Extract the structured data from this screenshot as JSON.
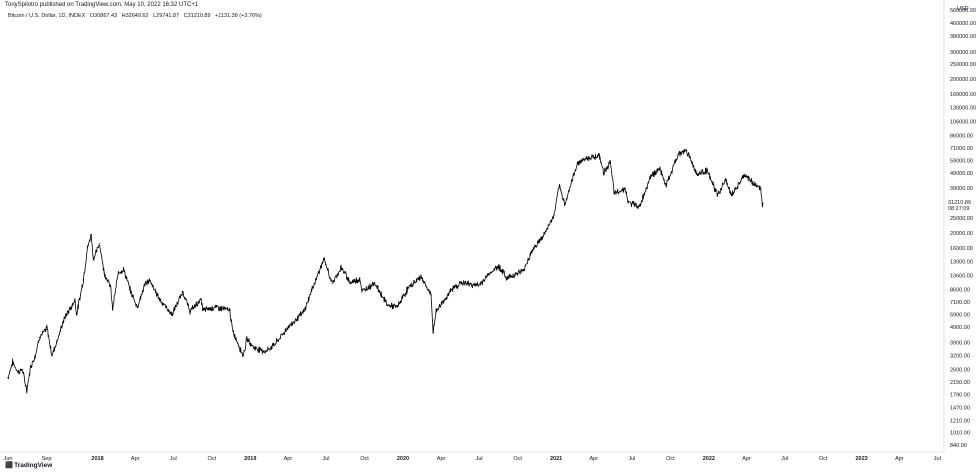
{
  "header": {
    "published_by": "TonySpilotro published on TradingView.com, May 10, 2022 16:32 UTC+1"
  },
  "symbol": {
    "name": "Bitcoin / U.S. Dollar, 1D, INDEX",
    "open": "O30867.43",
    "high": "H32649.62",
    "low": "L29741.87",
    "close": "C31210.89",
    "change": "+1131.38 (+3.76%)"
  },
  "currency": "USD",
  "last_price": {
    "value": "31210.89",
    "countdown": "08:27:09"
  },
  "logo": {
    "icon_name": "tradingview-logo-icon",
    "text": "TradingView"
  },
  "chart_data": {
    "type": "line",
    "title": "Bitcoin / U.S. Dollar, 1D, INDEX",
    "y_scale": "log",
    "ylim": [
      840,
      560000
    ],
    "y_ticks": [
      {
        "label": "560000.00",
        "value": 560000
      },
      {
        "label": "460000.00",
        "value": 460000
      },
      {
        "label": "380000.00",
        "value": 380000
      },
      {
        "label": "300000.00",
        "value": 300000
      },
      {
        "label": "250000.00",
        "value": 250000
      },
      {
        "label": "200000.00",
        "value": 200000
      },
      {
        "label": "160000.00",
        "value": 160000
      },
      {
        "label": "130000.00",
        "value": 130000
      },
      {
        "label": "106000.00",
        "value": 106000
      },
      {
        "label": "86000.00",
        "value": 86000
      },
      {
        "label": "71000.00",
        "value": 71000
      },
      {
        "label": "59000.00",
        "value": 59000
      },
      {
        "label": "49000.00",
        "value": 49000
      },
      {
        "label": "39000.00",
        "value": 39000
      },
      {
        "label": "25000.00",
        "value": 25000
      },
      {
        "label": "20000.00",
        "value": 20000
      },
      {
        "label": "16000.00",
        "value": 16000
      },
      {
        "label": "13000.00",
        "value": 13000
      },
      {
        "label": "10600.00",
        "value": 10600
      },
      {
        "label": "8600.00",
        "value": 8600
      },
      {
        "label": "7100.00",
        "value": 7100
      },
      {
        "label": "5900.00",
        "value": 5900
      },
      {
        "label": "4900.00",
        "value": 4900
      },
      {
        "label": "3900.00",
        "value": 3900
      },
      {
        "label": "3200.00",
        "value": 3200
      },
      {
        "label": "2600.00",
        "value": 2600
      },
      {
        "label": "2150.00",
        "value": 2150
      },
      {
        "label": "1790.00",
        "value": 1790
      },
      {
        "label": "1470.00",
        "value": 1470
      },
      {
        "label": "1210.00",
        "value": 1210
      },
      {
        "label": "1010.00",
        "value": 1010
      },
      {
        "label": "840.00",
        "value": 840
      }
    ],
    "xlim": [
      "2017-06-01",
      "2023-07-05"
    ],
    "x_ticks": [
      {
        "label": "Jun",
        "date": "2017-06-01",
        "year": false
      },
      {
        "label": "Sep",
        "date": "2017-09-01",
        "year": false
      },
      {
        "label": "2018",
        "date": "2018-01-01",
        "year": true
      },
      {
        "label": "Apr",
        "date": "2018-04-01",
        "year": false
      },
      {
        "label": "Jul",
        "date": "2018-07-01",
        "year": false
      },
      {
        "label": "Oct",
        "date": "2018-10-01",
        "year": false
      },
      {
        "label": "2019",
        "date": "2019-01-01",
        "year": true
      },
      {
        "label": "Apr",
        "date": "2019-04-01",
        "year": false
      },
      {
        "label": "Jul",
        "date": "2019-07-01",
        "year": false
      },
      {
        "label": "Oct",
        "date": "2019-10-01",
        "year": false
      },
      {
        "label": "2020",
        "date": "2020-01-01",
        "year": true
      },
      {
        "label": "Apr",
        "date": "2020-04-01",
        "year": false
      },
      {
        "label": "Jul",
        "date": "2020-07-01",
        "year": false
      },
      {
        "label": "Oct",
        "date": "2020-10-01",
        "year": false
      },
      {
        "label": "2021",
        "date": "2021-01-01",
        "year": true
      },
      {
        "label": "Apr",
        "date": "2021-04-01",
        "year": false
      },
      {
        "label": "Jul",
        "date": "2021-07-01",
        "year": false
      },
      {
        "label": "Oct",
        "date": "2021-10-01",
        "year": false
      },
      {
        "label": "2022",
        "date": "2022-01-01",
        "year": true
      },
      {
        "label": "Apr",
        "date": "2022-04-01",
        "year": false
      },
      {
        "label": "Jul",
        "date": "2022-07-01",
        "year": false
      },
      {
        "label": "Oct",
        "date": "2022-10-01",
        "year": false
      },
      {
        "label": "2023",
        "date": "2023-01-01",
        "year": true
      },
      {
        "label": "Apr",
        "date": "2023-04-01",
        "year": false
      },
      {
        "label": "Jul",
        "date": "2023-07-01",
        "year": false
      }
    ],
    "grid": false,
    "series": [
      {
        "color": "#000000",
        "points": [
          [
            "2017-06-01",
            2300
          ],
          [
            "2017-06-12",
            2900
          ],
          [
            "2017-06-25",
            2500
          ],
          [
            "2017-07-05",
            2600
          ],
          [
            "2017-07-16",
            1900
          ],
          [
            "2017-07-25",
            2700
          ],
          [
            "2017-08-05",
            3200
          ],
          [
            "2017-08-15",
            4200
          ],
          [
            "2017-08-31",
            4700
          ],
          [
            "2017-09-02",
            4900
          ],
          [
            "2017-09-14",
            3200
          ],
          [
            "2017-09-25",
            3900
          ],
          [
            "2017-10-12",
            5400
          ],
          [
            "2017-10-20",
            6000
          ],
          [
            "2017-11-01",
            6700
          ],
          [
            "2017-11-08",
            7400
          ],
          [
            "2017-11-12",
            5900
          ],
          [
            "2017-11-28",
            9900
          ],
          [
            "2017-12-08",
            16000
          ],
          [
            "2017-12-17",
            19500
          ],
          [
            "2017-12-22",
            13500
          ],
          [
            "2018-01-06",
            17000
          ],
          [
            "2018-01-17",
            11000
          ],
          [
            "2018-02-01",
            9000
          ],
          [
            "2018-02-06",
            6400
          ],
          [
            "2018-02-20",
            11200
          ],
          [
            "2018-03-05",
            11500
          ],
          [
            "2018-03-20",
            8500
          ],
          [
            "2018-04-06",
            6600
          ],
          [
            "2018-04-25",
            9400
          ],
          [
            "2018-05-05",
            9800
          ],
          [
            "2018-05-30",
            7400
          ],
          [
            "2018-06-28",
            5900
          ],
          [
            "2018-07-24",
            8300
          ],
          [
            "2018-08-10",
            6200
          ],
          [
            "2018-09-05",
            7400
          ],
          [
            "2018-09-10",
            6300
          ],
          [
            "2018-10-10",
            6600
          ],
          [
            "2018-11-13",
            6300
          ],
          [
            "2018-11-20",
            4600
          ],
          [
            "2018-12-15",
            3200
          ],
          [
            "2018-12-24",
            4100
          ],
          [
            "2019-01-10",
            3600
          ],
          [
            "2019-02-07",
            3400
          ],
          [
            "2019-03-01",
            3800
          ],
          [
            "2019-04-02",
            4900
          ],
          [
            "2019-05-10",
            6200
          ],
          [
            "2019-05-30",
            8800
          ],
          [
            "2019-06-26",
            13500
          ],
          [
            "2019-07-16",
            9400
          ],
          [
            "2019-08-06",
            11900
          ],
          [
            "2019-08-29",
            9500
          ],
          [
            "2019-09-20",
            10100
          ],
          [
            "2019-09-25",
            8300
          ],
          [
            "2019-10-25",
            9500
          ],
          [
            "2019-11-25",
            6800
          ],
          [
            "2019-12-18",
            6600
          ],
          [
            "2020-01-14",
            8800
          ],
          [
            "2020-02-13",
            10400
          ],
          [
            "2020-03-08",
            7900
          ],
          [
            "2020-03-13",
            4500
          ],
          [
            "2020-03-20",
            6200
          ],
          [
            "2020-04-30",
            8800
          ],
          [
            "2020-05-20",
            9500
          ],
          [
            "2020-06-30",
            9100
          ],
          [
            "2020-07-27",
            11000
          ],
          [
            "2020-08-17",
            12200
          ],
          [
            "2020-09-05",
            10200
          ],
          [
            "2020-10-15",
            11400
          ],
          [
            "2020-11-05",
            15500
          ],
          [
            "2020-12-01",
            19000
          ],
          [
            "2020-12-27",
            26000
          ],
          [
            "2021-01-08",
            40000
          ],
          [
            "2021-01-22",
            30800
          ],
          [
            "2021-02-21",
            57000
          ],
          [
            "2021-03-13",
            61000
          ],
          [
            "2021-04-14",
            63500
          ],
          [
            "2021-04-25",
            49000
          ],
          [
            "2021-05-10",
            58000
          ],
          [
            "2021-05-20",
            36000
          ],
          [
            "2021-06-15",
            39000
          ],
          [
            "2021-06-22",
            31500
          ],
          [
            "2021-07-20",
            29800
          ],
          [
            "2021-08-15",
            47000
          ],
          [
            "2021-09-06",
            52000
          ],
          [
            "2021-09-21",
            40500
          ],
          [
            "2021-10-20",
            65000
          ],
          [
            "2021-11-09",
            68500
          ],
          [
            "2021-12-04",
            48000
          ],
          [
            "2021-12-27",
            51000
          ],
          [
            "2022-01-22",
            35000
          ],
          [
            "2022-02-10",
            44500
          ],
          [
            "2022-02-24",
            35000
          ],
          [
            "2022-03-28",
            47500
          ],
          [
            "2022-04-20",
            41500
          ],
          [
            "2022-05-05",
            38500
          ],
          [
            "2022-05-09",
            30000
          ],
          [
            "2022-05-10",
            31210
          ]
        ]
      }
    ]
  }
}
